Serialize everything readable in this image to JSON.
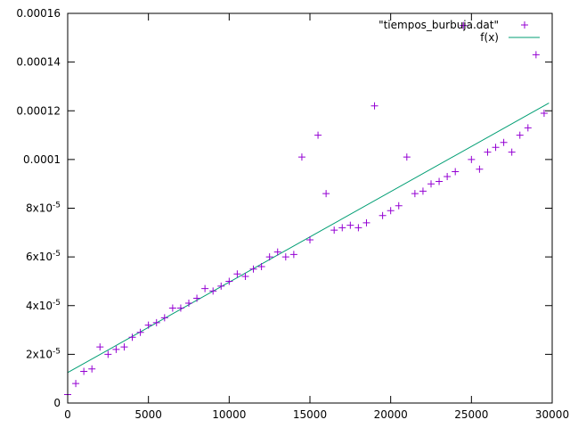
{
  "chart_data": {
    "type": "scatter",
    "xlim": [
      0,
      30000
    ],
    "ylim": [
      0,
      0.00016
    ],
    "grid": false,
    "legend_position": "top-right",
    "x_ticks": [
      {
        "value": 0,
        "label": "0"
      },
      {
        "value": 5000,
        "label": "5000"
      },
      {
        "value": 10000,
        "label": "10000"
      },
      {
        "value": 15000,
        "label": "15000"
      },
      {
        "value": 20000,
        "label": "20000"
      },
      {
        "value": 25000,
        "label": "25000"
      },
      {
        "value": 30000,
        "label": "30000"
      }
    ],
    "y_ticks": [
      {
        "value": 0,
        "label": "0",
        "exp": ""
      },
      {
        "value": 2e-05,
        "label": "2x10",
        "exp": "-5"
      },
      {
        "value": 4e-05,
        "label": "4x10",
        "exp": "-5"
      },
      {
        "value": 6e-05,
        "label": "6x10",
        "exp": "-5"
      },
      {
        "value": 8e-05,
        "label": "8x10",
        "exp": "-5"
      },
      {
        "value": 0.0001,
        "label": "0.0001",
        "exp": ""
      },
      {
        "value": 0.00012,
        "label": "0.00012",
        "exp": ""
      },
      {
        "value": 0.00014,
        "label": "0.00014",
        "exp": ""
      },
      {
        "value": 0.00016,
        "label": "0.00016",
        "exp": ""
      }
    ],
    "series": [
      {
        "name": "\"tiempos_burbuja.dat\"",
        "kind": "points",
        "color": "#9400d3",
        "x": [
          0,
          500,
          1000,
          1500,
          2000,
          2500,
          3000,
          3500,
          4000,
          4500,
          5000,
          5500,
          6000,
          6500,
          7000,
          7500,
          8000,
          8500,
          9000,
          9500,
          10000,
          10500,
          11000,
          11500,
          12000,
          12500,
          13000,
          13500,
          14000,
          14500,
          15000,
          15500,
          16000,
          16500,
          17000,
          17500,
          18000,
          18500,
          19000,
          19500,
          20000,
          20500,
          21000,
          21500,
          22000,
          22500,
          23000,
          23500,
          24000,
          24500,
          25000,
          25500,
          26000,
          26500,
          27000,
          27500,
          28000,
          28500,
          29000,
          29500
        ],
        "y": [
          3.5e-06,
          8e-06,
          1.3e-05,
          1.4e-05,
          2.3e-05,
          2e-05,
          2.2e-05,
          2.3e-05,
          2.7e-05,
          2.9e-05,
          3.2e-05,
          3.3e-05,
          3.5e-05,
          3.9e-05,
          3.9e-05,
          4.1e-05,
          4.3e-05,
          4.7e-05,
          4.6e-05,
          4.8e-05,
          5e-05,
          5.3e-05,
          5.2e-05,
          5.5e-05,
          5.6e-05,
          6e-05,
          6.2e-05,
          6e-05,
          6.1e-05,
          0.000101,
          6.7e-05,
          0.00011,
          8.6e-05,
          7.1e-05,
          7.2e-05,
          7.3e-05,
          7.2e-05,
          7.4e-05,
          0.000122,
          7.7e-05,
          7.9e-05,
          8.1e-05,
          0.000101,
          8.6e-05,
          8.7e-05,
          9e-05,
          9.1e-05,
          9.3e-05,
          9.5e-05,
          0.000155,
          0.0001,
          9.6e-05,
          0.000103,
          0.000105,
          0.000107,
          0.000103,
          0.00011,
          0.000113,
          0.000143,
          0.000119
        ]
      },
      {
        "name": "f(x)",
        "kind": "line",
        "color": "#009e73",
        "x": [
          0,
          29800
        ],
        "y": [
          1.25e-05,
          0.0001232
        ]
      }
    ]
  }
}
